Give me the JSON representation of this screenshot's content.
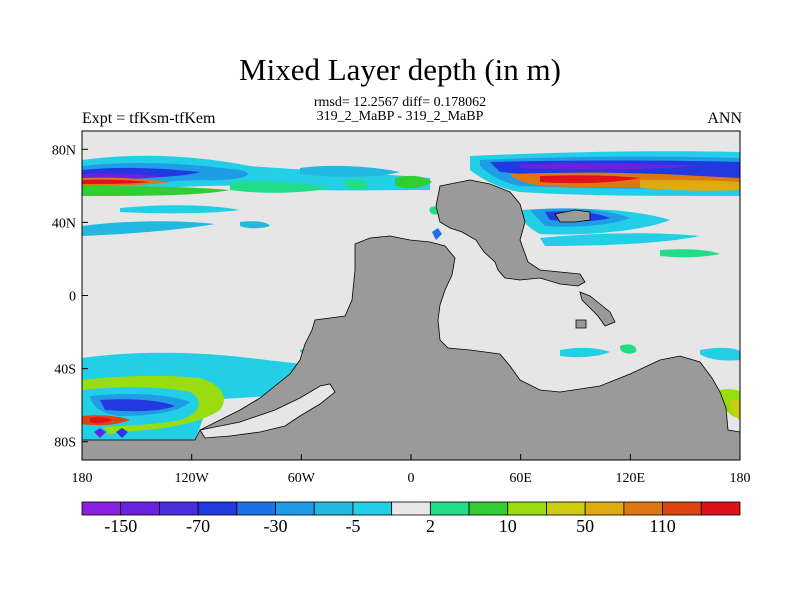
{
  "title": "Mixed Layer depth (in m)",
  "stats_line": "rmsd= 12.2567 diff= 0.178062",
  "comparison": "319_2_MaBP - 319_2_MaBP",
  "expt_label": "Expt = tfKsm-tfKem",
  "season": "ANN",
  "axes": {
    "x_ticks": [
      {
        "value": -180,
        "label": "180"
      },
      {
        "value": -120,
        "label": "120W"
      },
      {
        "value": -60,
        "label": "60W"
      },
      {
        "value": 0,
        "label": "0"
      },
      {
        "value": 60,
        "label": "60E"
      },
      {
        "value": 120,
        "label": "120E"
      },
      {
        "value": 180,
        "label": "180"
      }
    ],
    "y_ticks": [
      {
        "value": 80,
        "label": "80N"
      },
      {
        "value": 40,
        "label": "40N"
      },
      {
        "value": 0,
        "label": "0"
      },
      {
        "value": -40,
        "label": "40S"
      },
      {
        "value": -80,
        "label": "80S"
      }
    ],
    "x_range": [
      -180,
      180
    ],
    "y_range": [
      -90,
      90
    ]
  },
  "colorbar": {
    "colors": [
      "#8a1fe0",
      "#6a22e0",
      "#4a2fe0",
      "#2238e0",
      "#1f6fe6",
      "#1f9ce6",
      "#22b8e0",
      "#22cfe6",
      "#e8e8e8",
      "#22dd88",
      "#33cc33",
      "#99dd11",
      "#cccc11",
      "#ddaa11",
      "#dd7711",
      "#dd4411",
      "#e0101c"
    ],
    "labels": [
      "-150",
      "-70",
      "-30",
      "-5",
      "2",
      "10",
      "50",
      "110"
    ]
  },
  "colors": {
    "ocean": "#e6e6e6",
    "land": "#9a9a9a"
  }
}
